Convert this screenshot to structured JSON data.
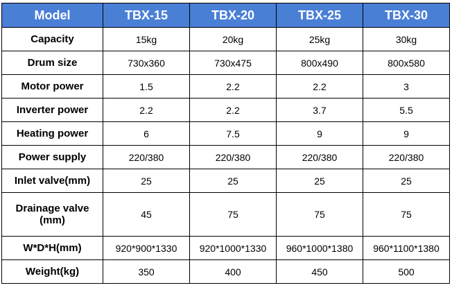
{
  "table": {
    "header": [
      "Model",
      "TBX-15",
      "TBX-20",
      "TBX-25",
      "TBX-30"
    ],
    "rows": [
      [
        "Capacity",
        "15kg",
        "20kg",
        "25kg",
        "30kg"
      ],
      [
        "Drum size",
        "730x360",
        "730x475",
        "800x490",
        "800x580"
      ],
      [
        "Motor power",
        "1.5",
        "2.2",
        "2.2",
        "3"
      ],
      [
        "Inverter power",
        "2.2",
        "2.2",
        "3.7",
        "5.5"
      ],
      [
        "Heating power",
        "6",
        "7.5",
        "9",
        "9"
      ],
      [
        "Power supply",
        "220/380",
        "220/380",
        "220/380",
        "220/380"
      ],
      [
        "Inlet valve(mm)",
        "25",
        "25",
        "25",
        "25"
      ],
      [
        "Drainage valve (mm)",
        "45",
        "75",
        "75",
        "75"
      ],
      [
        "W*D*H(mm)",
        "920*900*1330",
        "920*1000*1330",
        "960*1000*1380",
        "960*1100*1380"
      ],
      [
        "Weight(kg)",
        "350",
        "400",
        "450",
        "500"
      ]
    ]
  }
}
